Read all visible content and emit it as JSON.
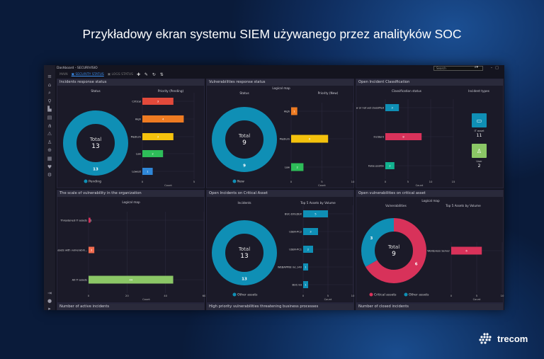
{
  "headline": "Przykładowy ekran systemu SIEM używanego przez analityków SOC",
  "logo": "trecom",
  "window": {
    "title": "Dashboard - SECURIVISIO",
    "search_placeholder": "Search",
    "tabs": [
      {
        "label": "MAIN",
        "active": false
      },
      {
        "label": "SECURITY STATUS",
        "active": true
      },
      {
        "label": "LOGS STATUS",
        "active": false
      }
    ],
    "tools": "✚ ✎ ↻ ⇅"
  },
  "sidebar": [
    "menu-icon",
    "home-icon",
    "search-icon",
    "filter-icon",
    "chart-icon",
    "assets-icon",
    "network-icon",
    "alert-icon",
    "hierarchy-icon",
    "zoom-icon",
    "report-icon",
    "shield-icon",
    "settings-icon"
  ],
  "colors": {
    "teal": "#0f8fb5",
    "red": "#e24a3b",
    "orange": "#ee7b22",
    "yellow": "#f4c20d",
    "green": "#2ebd59",
    "blue": "#2f87d8",
    "pink": "#d8325a",
    "lightgreen": "#8bc766",
    "seagreen": "#12b28f",
    "salmon": "#f26c4f"
  },
  "panels": [
    {
      "title": "Incidents response status",
      "subtitles": [
        "Status",
        "Priority (Pending)"
      ],
      "donut": {
        "total_label": "Total",
        "total": 13,
        "slices": [
          {
            "name": "Pending",
            "value": 13,
            "color": "#0f8fb5"
          }
        ]
      },
      "bars": {
        "categories": [
          "Critical",
          "High",
          "Medium",
          "Low",
          "Lowest"
        ],
        "values": [
          3,
          4,
          3,
          2,
          1
        ],
        "colors": [
          "#e24a3b",
          "#ee7b22",
          "#f4c20d",
          "#2ebd59",
          "#2f87d8"
        ],
        "ticks": [
          0,
          5
        ],
        "xlabel": "Count",
        "xmax": 5
      }
    },
    {
      "title": "Vulnerabilities response status",
      "subtitles": [
        "Logical map",
        "Status",
        "Priority (New)"
      ],
      "donut": {
        "total_label": "Total",
        "total": 9,
        "slices": [
          {
            "name": "New",
            "value": 9,
            "color": "#0f8fb5"
          }
        ]
      },
      "bars": {
        "categories": [
          "High",
          "Medium",
          "Low"
        ],
        "values": [
          1,
          6,
          2
        ],
        "colors": [
          "#ee7b22",
          "#f4c20d",
          "#2ebd59"
        ],
        "ticks": [
          0,
          5,
          10
        ],
        "xlabel": "Count",
        "xmax": 10
      }
    },
    {
      "title": "Open Incident Classification",
      "subtitles": [
        "Classification status",
        "Incident types"
      ],
      "bars": {
        "categories": [
          "New or not yet classified",
          "Incident",
          "False positiv"
        ],
        "values": [
          3,
          8,
          2
        ],
        "colors": [
          "#0f8fb5",
          "#d8325a",
          "#12b28f"
        ],
        "ticks": [
          0,
          5,
          10,
          15
        ],
        "xlabel": "Count",
        "xmax": 15
      },
      "tiles": [
        {
          "label": "IT asset",
          "value": "11",
          "color": "#0f8fb5",
          "icon": "laptop-icon"
        },
        {
          "label": "User",
          "value": "2",
          "color": "#8bc766",
          "icon": "user-icon"
        }
      ]
    },
    {
      "title": "The scale of vulnerability in the organization",
      "subtitles": [
        "Logical map"
      ],
      "bars": {
        "categories": [
          "Threatened IT assets",
          "IT assets with vulnerabili...",
          "All IT assets"
        ],
        "values": [
          1,
          3,
          44
        ],
        "colors": [
          "#d8325a",
          "#f26c4f",
          "#8bc766"
        ],
        "ticks": [
          0,
          20,
          40,
          60
        ],
        "xlabel": "Count",
        "xmax": 60
      }
    },
    {
      "title": "Open Incidents on Critical Asset",
      "subtitles": [
        "Incidents",
        "Top 5 Assets by Volume"
      ],
      "donut": {
        "total_label": "Total",
        "total": 13,
        "slices": [
          {
            "name": "Other assets",
            "value": 13,
            "color": "#0f8fb5"
          }
        ]
      },
      "bars": {
        "categories": [
          "BUC-DOLDEX",
          "USER-PC2",
          "USER-PC1",
          "WEBAPP08 inc.140",
          "BUC-93"
        ],
        "values": [
          5,
          3,
          2,
          1,
          1
        ],
        "colors": [
          "#0f8fb5",
          "#0f8fb5",
          "#0f8fb5",
          "#0f8fb5",
          "#0f8fb5"
        ],
        "ticks": [
          0,
          5,
          10
        ],
        "xlabel": "Count",
        "xmax": 10
      }
    },
    {
      "title": "Open vulnerabilities on critical asset",
      "subtitles": [
        "Logical map",
        "Vulnerabilities",
        "Top 5 Assets by Volume"
      ],
      "donut": {
        "total_label": "Total",
        "total": 9,
        "slices": [
          {
            "name": "Critical assets",
            "value": 6,
            "color": "#d8325a"
          },
          {
            "name": "Other assets",
            "value": 3,
            "color": "#0f8fb5"
          }
        ]
      },
      "bars": {
        "categories": [
          "Wordpress Server"
        ],
        "values": [
          6
        ],
        "colors": [
          "#d8325a"
        ],
        "ticks": [
          0,
          5,
          10
        ],
        "xlabel": "Count",
        "xmax": 10
      }
    },
    {
      "title": "Number of active incidents"
    },
    {
      "title": "High priority vulnerabilities threatening business processes"
    },
    {
      "title": "Number of closed incidents"
    }
  ]
}
